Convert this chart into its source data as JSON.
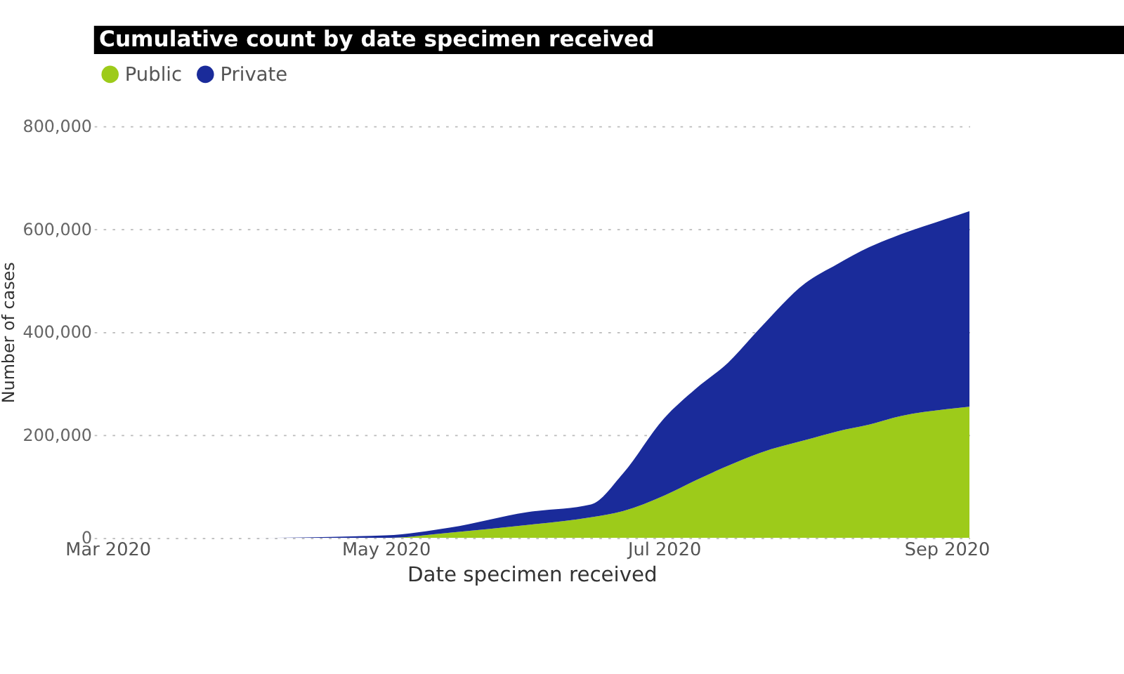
{
  "chart_data": {
    "type": "area",
    "stacked": true,
    "title": "Cumulative count by date specimen received",
    "xlabel": "Date specimen received",
    "ylabel": "Number of cases",
    "x": [
      "2020-03-01",
      "2020-04-01",
      "2020-05-01",
      "2020-05-15",
      "2020-06-01",
      "2020-06-15",
      "2020-06-22",
      "2020-07-01",
      "2020-07-08",
      "2020-07-15",
      "2020-07-22",
      "2020-08-01",
      "2020-08-08",
      "2020-08-15",
      "2020-08-22",
      "2020-09-01",
      "2020-09-06"
    ],
    "series": [
      {
        "name": "Public",
        "color": "#9dcb1a",
        "values": [
          0,
          0,
          0,
          10000,
          25000,
          40000,
          52000,
          82000,
          112000,
          140000,
          165000,
          190000,
          207000,
          220000,
          237000,
          250000,
          255000
        ]
      },
      {
        "name": "Private",
        "color": "#1a2b9a",
        "values": [
          0,
          0,
          5000,
          10000,
          25000,
          25000,
          73000,
          150000,
          178000,
          200000,
          242000,
          305000,
          325000,
          345000,
          353000,
          370000,
          380000
        ]
      }
    ],
    "xlim": [
      "2020-02-27",
      "2020-09-06"
    ],
    "xticks": [
      {
        "value": "2020-03-01",
        "label": "Mar 2020"
      },
      {
        "value": "2020-05-01",
        "label": "May 2020"
      },
      {
        "value": "2020-07-01",
        "label": "Jul 2020"
      },
      {
        "value": "2020-09-01",
        "label": "Sep 2020"
      }
    ],
    "ylim": [
      0,
      800000
    ],
    "yticks": [
      0,
      {
        "value": 200000,
        "label": "200,000"
      },
      {
        "value": 400000,
        "label": "400,000"
      },
      {
        "value": 600000,
        "label": "600,000"
      },
      {
        "value": 800000,
        "label": "800,000"
      }
    ],
    "grid": "y",
    "legend": "top left"
  }
}
